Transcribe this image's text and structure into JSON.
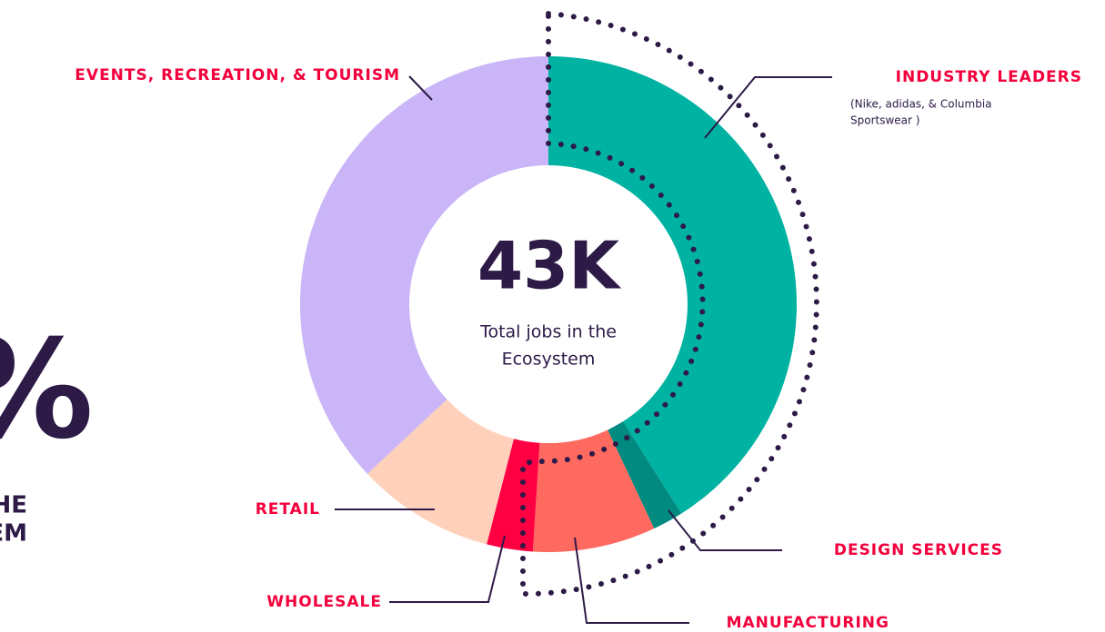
{
  "chart_data": {
    "type": "pie",
    "donut": true,
    "categories": [
      "INDUSTRY LEADERS",
      "DESIGN SERVICES",
      "MANUFACTURING",
      "WHOLESALE",
      "RETAIL",
      "EVENTS, RECREATION, & TOURISM"
    ],
    "values": [
      41,
      2,
      8,
      3,
      9,
      37
    ],
    "colors": [
      "#00b2a2",
      "#008a80",
      "#ff6a60",
      "#ff0042",
      "#ffd1ba",
      "#c9b5f7"
    ],
    "center_value": "43K",
    "center_label": [
      "Total jobs in the",
      "Ecosystem"
    ],
    "annotation": [
      "(Nike, adidas, & Columbia",
      "Sportswear )"
    ]
  },
  "side_text": {
    "symbol": "%",
    "lines": [
      "HE",
      "EM"
    ]
  }
}
